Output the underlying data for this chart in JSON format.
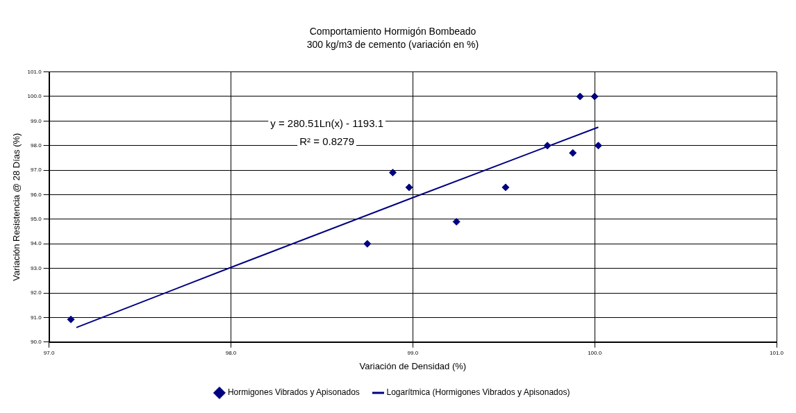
{
  "chart_data": {
    "type": "scatter",
    "title": "Comportamiento Hormigón Bombeado",
    "subtitle": "300 kg/m3 de cemento (variación en %)",
    "xlabel": "Variación de Densidad (%)",
    "ylabel": "Variación Resistencia @ 28 Días (%)",
    "series": [
      {
        "name": "Hormigones Vibrados y Apisonados",
        "color": "#000080",
        "marker": "diamond",
        "x": [
          97.12,
          98.75,
          98.89,
          98.98,
          99.24,
          99.51,
          99.74,
          99.88,
          99.92,
          100.0,
          100.02
        ],
        "values": [
          90.92,
          94.0,
          96.9,
          96.3,
          94.9,
          96.3,
          98.0,
          97.7,
          100.0,
          100.0,
          98.0
        ]
      },
      {
        "name": "Logarítmica (Hormigones Vibrados y Apisonados)",
        "color": "#000080",
        "type": "line",
        "marker": "none",
        "x": [
          97.15,
          98.0,
          99.0,
          100.02
        ],
        "values": [
          90.59,
          93.04,
          95.88,
          98.75
        ]
      }
    ],
    "annotations": [
      "y = 280.51Ln(x) - 1193.1",
      "R² = 0.8279"
    ],
    "xlim": [
      97,
      101
    ],
    "xticks": [
      {
        "value": 97,
        "label": "97.0"
      },
      {
        "value": 98,
        "label": "98.0"
      },
      {
        "value": 99,
        "label": "99.0"
      },
      {
        "value": 100,
        "label": "100.0"
      },
      {
        "value": 101,
        "label": "101.0"
      }
    ],
    "ylim": [
      90,
      101
    ],
    "yticks": [
      {
        "value": 90,
        "label": "90.0"
      },
      {
        "value": 91,
        "label": "91.0"
      },
      {
        "value": 92,
        "label": "92.0"
      },
      {
        "value": 93,
        "label": "93.0"
      },
      {
        "value": 94,
        "label": "94.0"
      },
      {
        "value": 95,
        "label": "95.0"
      },
      {
        "value": 96,
        "label": "96.0"
      },
      {
        "value": 97,
        "label": "97.0"
      },
      {
        "value": 98,
        "label": "98.0"
      },
      {
        "value": 99,
        "label": "99.0"
      },
      {
        "value": 100,
        "label": "100.0"
      },
      {
        "value": 101,
        "label": "101.0"
      }
    ],
    "grid": true,
    "legend": "bottom"
  }
}
